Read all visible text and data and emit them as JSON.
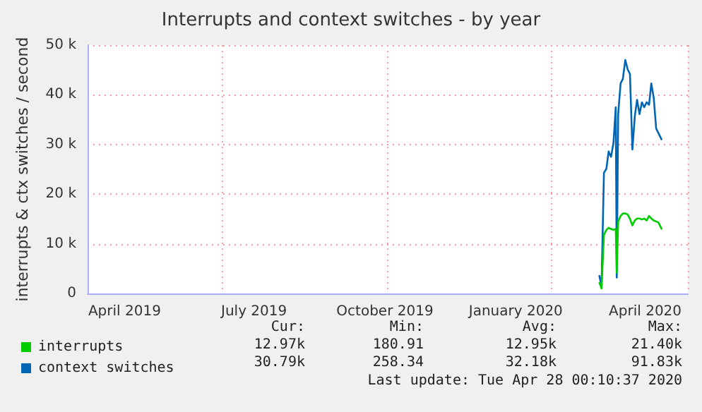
{
  "chart_data": {
    "type": "line",
    "title": "Interrupts and context switches - by year",
    "ylabel": "interrupts & ctx switches / second",
    "x": [
      "2020-02-28T17:00",
      "2020-03-01T07:00",
      "2020-03-03T00:00",
      "2020-03-04T17:00",
      "2020-03-06T07:00",
      "2020-03-08T00:00",
      "2020-03-09T17:00",
      "2020-03-11T07:00",
      "2020-03-12T00:00",
      "2020-03-13T00:00",
      "2020-03-14T17:00",
      "2020-03-16T07:00",
      "2020-03-18T00:00",
      "2020-03-19T17:00",
      "2020-03-21T07:00",
      "2020-03-23T00:00",
      "2020-03-24T17:00",
      "2020-03-26T07:00",
      "2020-03-28T00:00",
      "2020-03-29T17:00",
      "2020-03-31T07:00",
      "2020-04-02T00:00",
      "2020-04-03T17:00",
      "2020-04-05T07:00",
      "2020-04-07T00:00",
      "2020-04-08T17:00",
      "2020-04-10T07:00",
      "2020-04-12T17:00"
    ],
    "series": [
      {
        "name": "interrupts",
        "color": "#00cc00",
        "values": [
          2300,
          1000,
          11800,
          12800,
          13200,
          13000,
          12800,
          13000,
          4200,
          14500,
          15600,
          16100,
          16100,
          15900,
          15000,
          13700,
          14700,
          15100,
          15100,
          14900,
          15100,
          14700,
          15600,
          15100,
          14700,
          14500,
          14300,
          12900
        ]
      },
      {
        "name": "context switches",
        "color": "#0066b3",
        "values": [
          3700,
          1400,
          24300,
          25100,
          28600,
          27500,
          30400,
          37500,
          3200,
          36100,
          42300,
          43200,
          47000,
          45100,
          44200,
          29000,
          35700,
          39000,
          36100,
          38500,
          37500,
          38500,
          38000,
          42300,
          39400,
          33200,
          32300,
          30900
        ]
      }
    ],
    "xlim": [
      "2019-03-06",
      "2020-05-01"
    ],
    "xticks": [
      {
        "value": "2019-04-01",
        "label": "April 2019"
      },
      {
        "value": "2019-07-01",
        "label": "July 2019"
      },
      {
        "value": "2019-10-01",
        "label": "October 2019"
      },
      {
        "value": "2020-01-01",
        "label": "January 2020"
      },
      {
        "value": "2020-04-01",
        "label": "April 2020"
      }
    ],
    "ylim": [
      0,
      50000
    ],
    "yticks": [
      0,
      {
        "value": 10000,
        "label": "10 k"
      },
      {
        "value": 20000,
        "label": "20 k"
      },
      {
        "value": 30000,
        "label": "30 k"
      },
      {
        "value": 40000,
        "label": "40 k"
      },
      {
        "value": 50000,
        "label": "50 k"
      }
    ],
    "grid": true,
    "legend": "bottom left",
    "marker": "none",
    "line_style": "solid",
    "annotations": [
      "Cur:",
      "Min:",
      "Avg:",
      "Max:",
      "12.97k",
      "180.91",
      "12.95k",
      "21.40k",
      "30.79k",
      "258.34",
      "32.18k",
      "91.83k",
      "Last update: Tue Apr 28 00:10:37 2020"
    ]
  }
}
